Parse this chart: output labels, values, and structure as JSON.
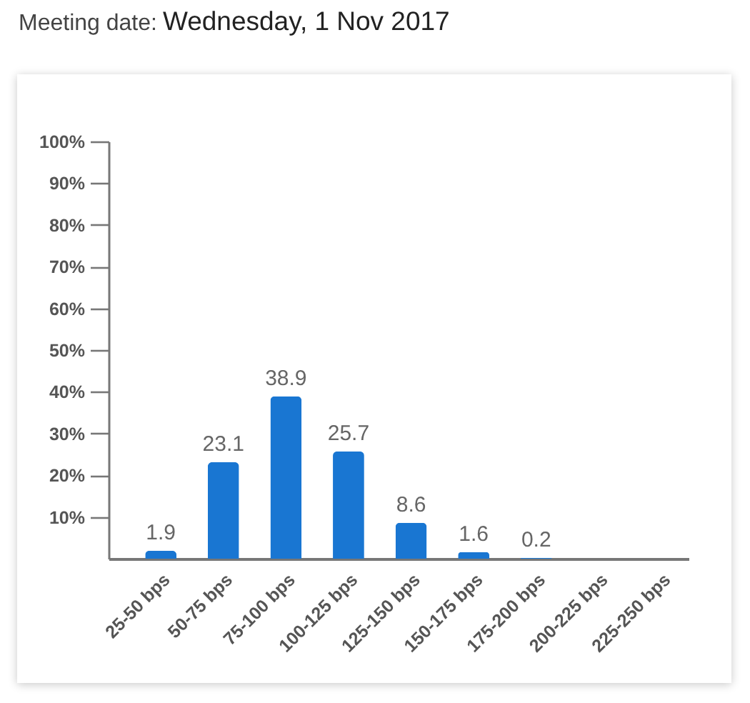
{
  "chart_data": {
    "type": "bar",
    "title": "Meeting date:",
    "subtitle": "Wednesday, 1 Nov 2017",
    "categories": [
      "25-50 bps",
      "50-75 bps",
      "75-100 bps",
      "100-125 bps",
      "125-150 bps",
      "150-175 bps",
      "175-200 bps",
      "200-225 bps",
      "225-250 bps"
    ],
    "values": [
      1.9,
      23.1,
      38.9,
      25.7,
      8.6,
      1.6,
      0.2,
      0,
      0
    ],
    "value_labels": [
      "1.9",
      "23.1",
      "38.9",
      "25.7",
      "8.6",
      "1.6",
      "0.2",
      null,
      null
    ],
    "color": "#1976d2",
    "ylim": [
      0,
      100
    ],
    "yticks": [
      {
        "value": 10,
        "label": "10%"
      },
      {
        "value": 20,
        "label": "20%"
      },
      {
        "value": 30,
        "label": "30%"
      },
      {
        "value": 40,
        "label": "40%"
      },
      {
        "value": 50,
        "label": "50%"
      },
      {
        "value": 60,
        "label": "60%"
      },
      {
        "value": 70,
        "label": "70%"
      },
      {
        "value": 80,
        "label": "80%"
      },
      {
        "value": 90,
        "label": "90%"
      },
      {
        "value": 100,
        "label": "100%"
      }
    ]
  }
}
